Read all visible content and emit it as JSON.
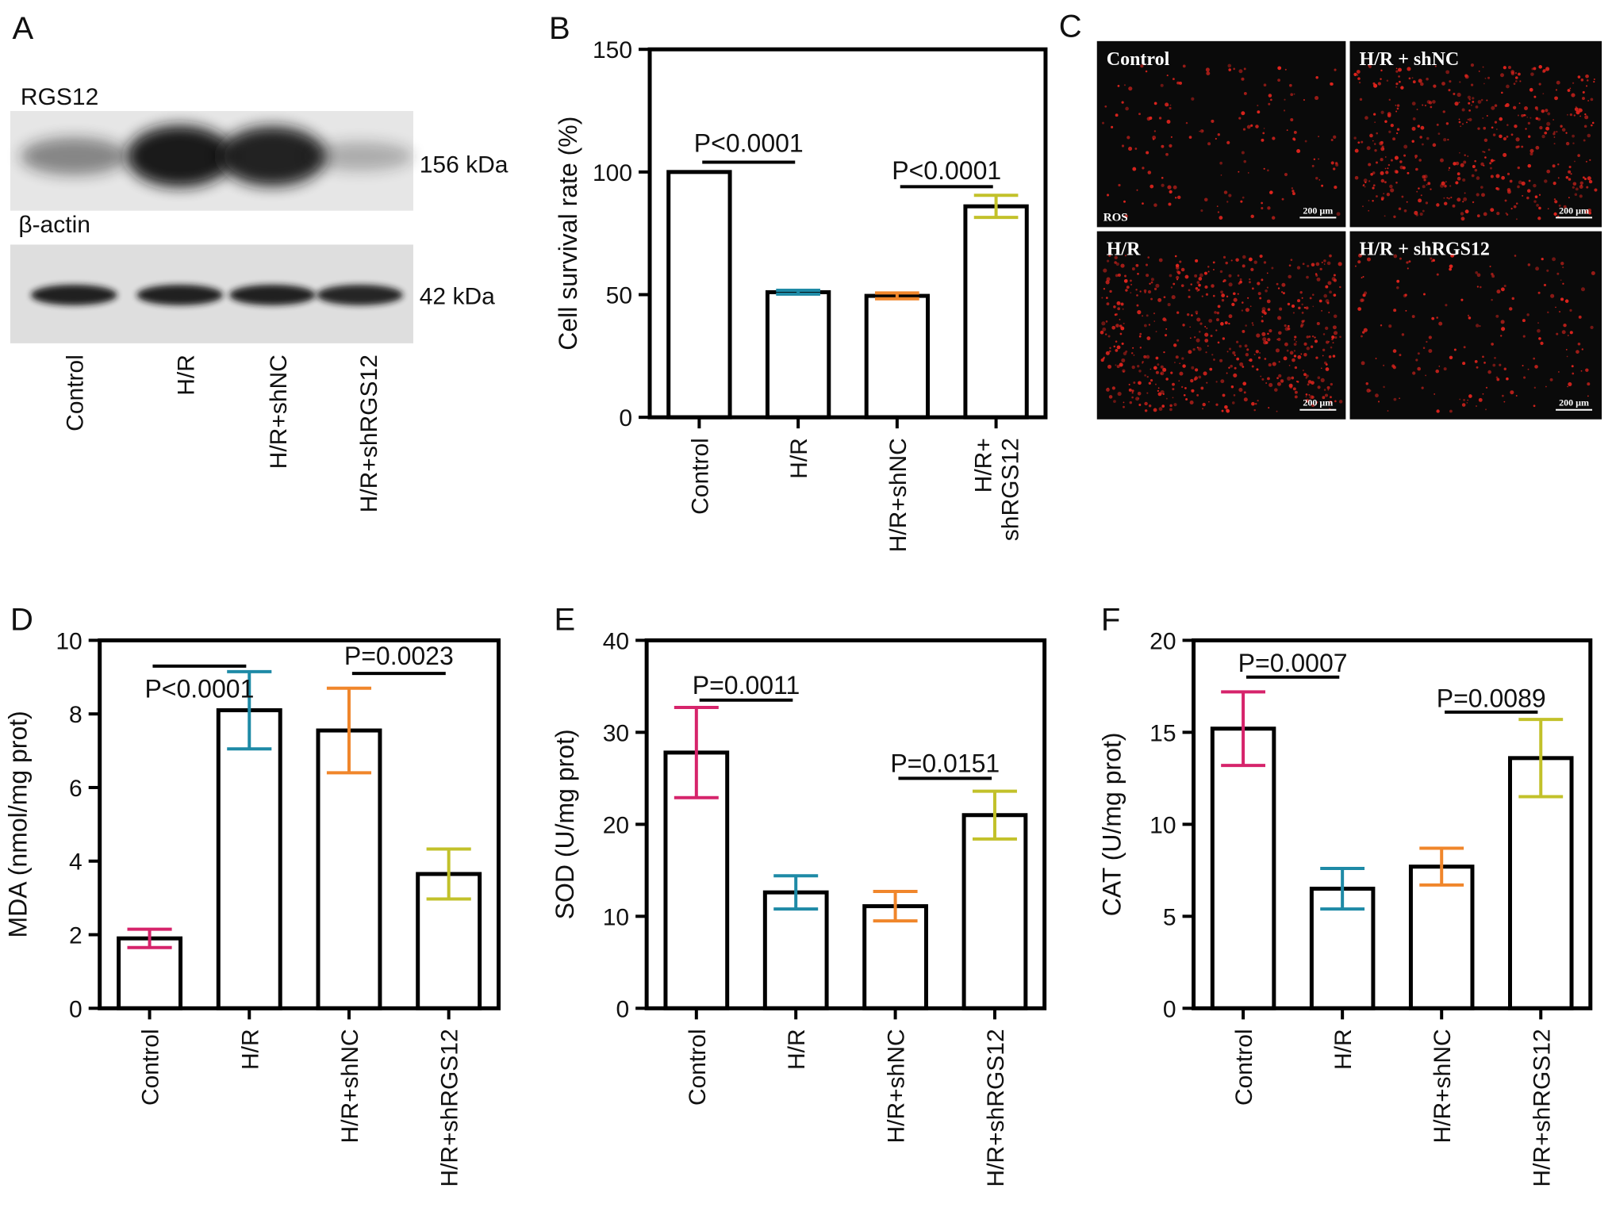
{
  "colors": {
    "control": "#d6246b",
    "hr": "#1e8aa6",
    "hr_shnc": "#f0862b",
    "hr_shrgs12": "#c2c12a",
    "band": "#141414",
    "ros": "#e0241d"
  },
  "panels": {
    "A": {
      "letter": "A",
      "protein_label": "RGS12",
      "loading_label": "β-actin",
      "kda_top": "156 kDa",
      "kda_bottom": "42 kDa",
      "lanes": [
        "Control",
        "H/R",
        "H/R+shNC",
        "H/R+shRGS12"
      ],
      "band_intensity_rgs12": [
        0.35,
        1.0,
        0.95,
        0.12
      ],
      "band_intensity_actin": [
        0.95,
        0.95,
        0.95,
        0.92
      ]
    },
    "C": {
      "letter": "C",
      "images": [
        {
          "label": "Control",
          "density": 0.25,
          "scale": "200 µm",
          "stain": "ROS"
        },
        {
          "label": "H/R + shNC",
          "density": 0.8,
          "scale": "200 µm",
          "stain": ""
        },
        {
          "label": "H/R",
          "density": 1.0,
          "scale": "200 µm",
          "stain": ""
        },
        {
          "label": "H/R + shRGS12",
          "density": 0.3,
          "scale": "200 µm",
          "stain": ""
        }
      ]
    }
  },
  "chart_data": [
    {
      "id": "B",
      "letter": "B",
      "type": "bar",
      "categories": [
        "Control",
        "H/R",
        "H/R+shNC",
        "H/R+\nshRGS12"
      ],
      "values": [
        100,
        51,
        49.5,
        86
      ],
      "errors": [
        0,
        0.8,
        1.2,
        4.5
      ],
      "ylabel": "Cell survival rate (%)",
      "ylim": [
        0,
        150
      ],
      "yticks": [
        0,
        50,
        100,
        150
      ],
      "annotations": [
        {
          "text": "P<0.0001",
          "from": 0,
          "to": 1,
          "y": 104,
          "text_y": 112
        },
        {
          "text": "P<0.0001",
          "from": 2,
          "to": 3,
          "y": 94,
          "text_y": 101
        }
      ]
    },
    {
      "id": "D",
      "letter": "D",
      "type": "bar",
      "categories": [
        "Control",
        "H/R",
        "H/R+shNC",
        "H/R+shRGS12"
      ],
      "values": [
        1.9,
        8.1,
        7.55,
        3.65
      ],
      "errors": [
        0.25,
        1.05,
        1.15,
        0.68
      ],
      "ylabel": "MDA (nmol/mg prot)",
      "ylim": [
        0,
        10
      ],
      "yticks": [
        0,
        2,
        4,
        6,
        8,
        10
      ],
      "annotations": [
        {
          "text": "P<0.0001",
          "from": 0,
          "to": 1,
          "y": 9.3,
          "text_y": 8.7
        },
        {
          "text": "P=0.0023",
          "from": 2,
          "to": 3,
          "y": 9.1,
          "text_y": 9.6
        }
      ]
    },
    {
      "id": "E",
      "letter": "E",
      "type": "bar",
      "categories": [
        "Control",
        "H/R",
        "H/R+shNC",
        "H/R+shRGS12"
      ],
      "values": [
        27.8,
        12.6,
        11.1,
        21.0
      ],
      "errors": [
        4.9,
        1.8,
        1.6,
        2.6
      ],
      "ylabel": "SOD (U/mg prot)",
      "ylim": [
        0,
        40
      ],
      "yticks": [
        0,
        10,
        20,
        30,
        40
      ],
      "annotations": [
        {
          "text": "P=0.0011",
          "from": 0,
          "to": 1,
          "y": 33.5,
          "text_y": 35.2
        },
        {
          "text": "P=0.0151",
          "from": 2,
          "to": 3,
          "y": 25.0,
          "text_y": 26.7
        }
      ]
    },
    {
      "id": "F",
      "letter": "F",
      "type": "bar",
      "categories": [
        "Control",
        "H/R",
        "H/R+shNC",
        "H/R+shRGS12"
      ],
      "values": [
        15.2,
        6.5,
        7.7,
        13.6
      ],
      "errors": [
        2.0,
        1.1,
        1.0,
        2.1
      ],
      "ylabel": "CAT (U/mg prot)",
      "ylim": [
        0,
        20
      ],
      "yticks": [
        0,
        5,
        10,
        15,
        20
      ],
      "annotations": [
        {
          "text": "P=0.0007",
          "from": 0,
          "to": 1,
          "y": 18.0,
          "text_y": 18.8
        },
        {
          "text": "P=0.0089",
          "from": 2,
          "to": 3,
          "y": 16.1,
          "text_y": 16.9
        }
      ]
    }
  ]
}
